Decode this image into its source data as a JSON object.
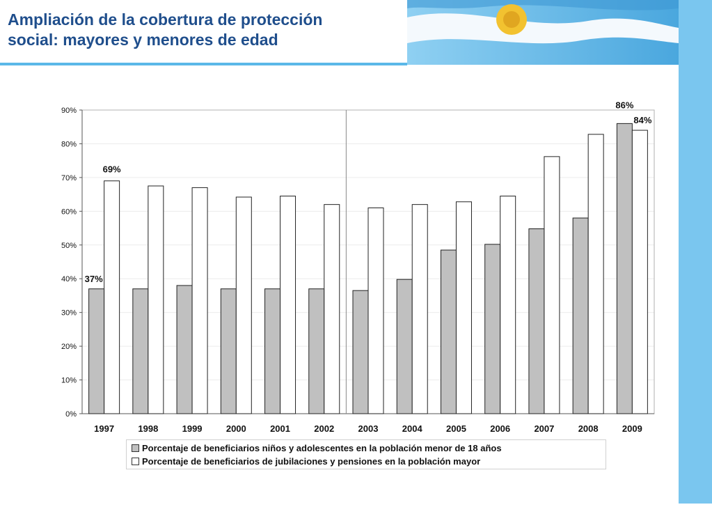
{
  "header": {
    "title_line1": "Ampliación de la cobertura de protección",
    "title_line2": "social: mayores y menores de edad"
  },
  "colors": {
    "title": "#1f4e8c",
    "accent_blue": "#5bb8e8",
    "series_children_fill": "#c0c0c0",
    "series_elderly_fill": "#ffffff"
  },
  "chart_data": {
    "type": "bar",
    "categories": [
      "1997",
      "1998",
      "1999",
      "2000",
      "2001",
      "2002",
      "2003",
      "2004",
      "2005",
      "2006",
      "2007",
      "2008",
      "2009"
    ],
    "series": [
      {
        "name": "Porcentaje de beneficiarios niños y adolescentes en la población menor de 18 años",
        "values": [
          37,
          37,
          38,
          37,
          37,
          37,
          36.5,
          39.8,
          48.5,
          50.2,
          54.8,
          58,
          86
        ]
      },
      {
        "name": "Porcentaje de beneficiarios de jubilaciones y pensiones en la población mayor",
        "values": [
          69,
          67.5,
          67,
          64.2,
          64.5,
          62,
          61,
          62,
          62.8,
          64.5,
          76.2,
          82.8,
          84
        ]
      }
    ],
    "yticks": [
      "0%",
      "10%",
      "20%",
      "30%",
      "40%",
      "50%",
      "60%",
      "70%",
      "80%",
      "90%"
    ],
    "ylim": [
      0,
      90
    ],
    "annotations": [
      "37%",
      "69%",
      "86%",
      "84%"
    ],
    "gridlines": true,
    "legend_position": "bottom"
  }
}
